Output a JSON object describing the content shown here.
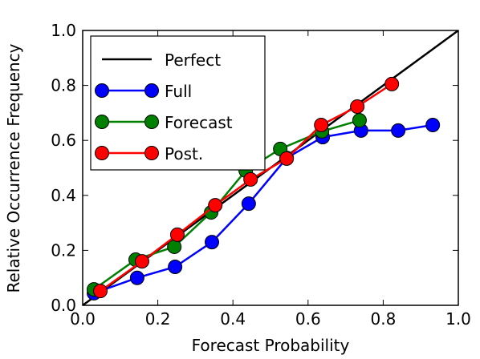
{
  "chart_data": {
    "type": "line",
    "xlabel": "Forecast Probability",
    "ylabel": "Relative Occurrence Frequency",
    "xlim": [
      0,
      1
    ],
    "ylim": [
      0,
      1
    ],
    "xticks": [
      {
        "value": 0,
        "label": "0.0"
      },
      0.2,
      0.4,
      0.6,
      0.8,
      {
        "value": 1,
        "label": "1.0"
      }
    ],
    "yticks": [
      {
        "value": 0,
        "label": "0.0"
      },
      0.2,
      0.4,
      0.6,
      0.8,
      {
        "value": 1,
        "label": "1.0"
      }
    ],
    "grid": false,
    "legend": "upper left",
    "series": [
      {
        "name": "Perfect",
        "color": "#000000",
        "x": [
          0,
          1
        ],
        "values": [
          0,
          1
        ]
      },
      {
        "name": "Full",
        "color": "#0000ff",
        "marker": "o",
        "x": [
          0.03,
          0.145,
          0.246,
          0.344,
          0.442,
          0.543,
          0.639,
          0.741,
          0.84,
          0.932
        ],
        "values": [
          0.044,
          0.1,
          0.14,
          0.23,
          0.37,
          0.536,
          0.612,
          0.636,
          0.636,
          0.656
        ]
      },
      {
        "name": "Forecast",
        "color": "#008000",
        "marker": "o",
        "x": [
          0.03,
          0.141,
          0.244,
          0.342,
          0.434,
          0.526,
          0.637,
          0.737
        ],
        "values": [
          0.058,
          0.166,
          0.213,
          0.338,
          0.49,
          0.569,
          0.633,
          0.673
        ]
      },
      {
        "name": "Post.",
        "color": "#ff0000",
        "marker": "o",
        "x": [
          0.047,
          0.158,
          0.252,
          0.353,
          0.447,
          0.543,
          0.635,
          0.731,
          0.823
        ],
        "values": [
          0.052,
          0.16,
          0.257,
          0.364,
          0.458,
          0.534,
          0.656,
          0.723,
          0.805
        ]
      }
    ]
  }
}
